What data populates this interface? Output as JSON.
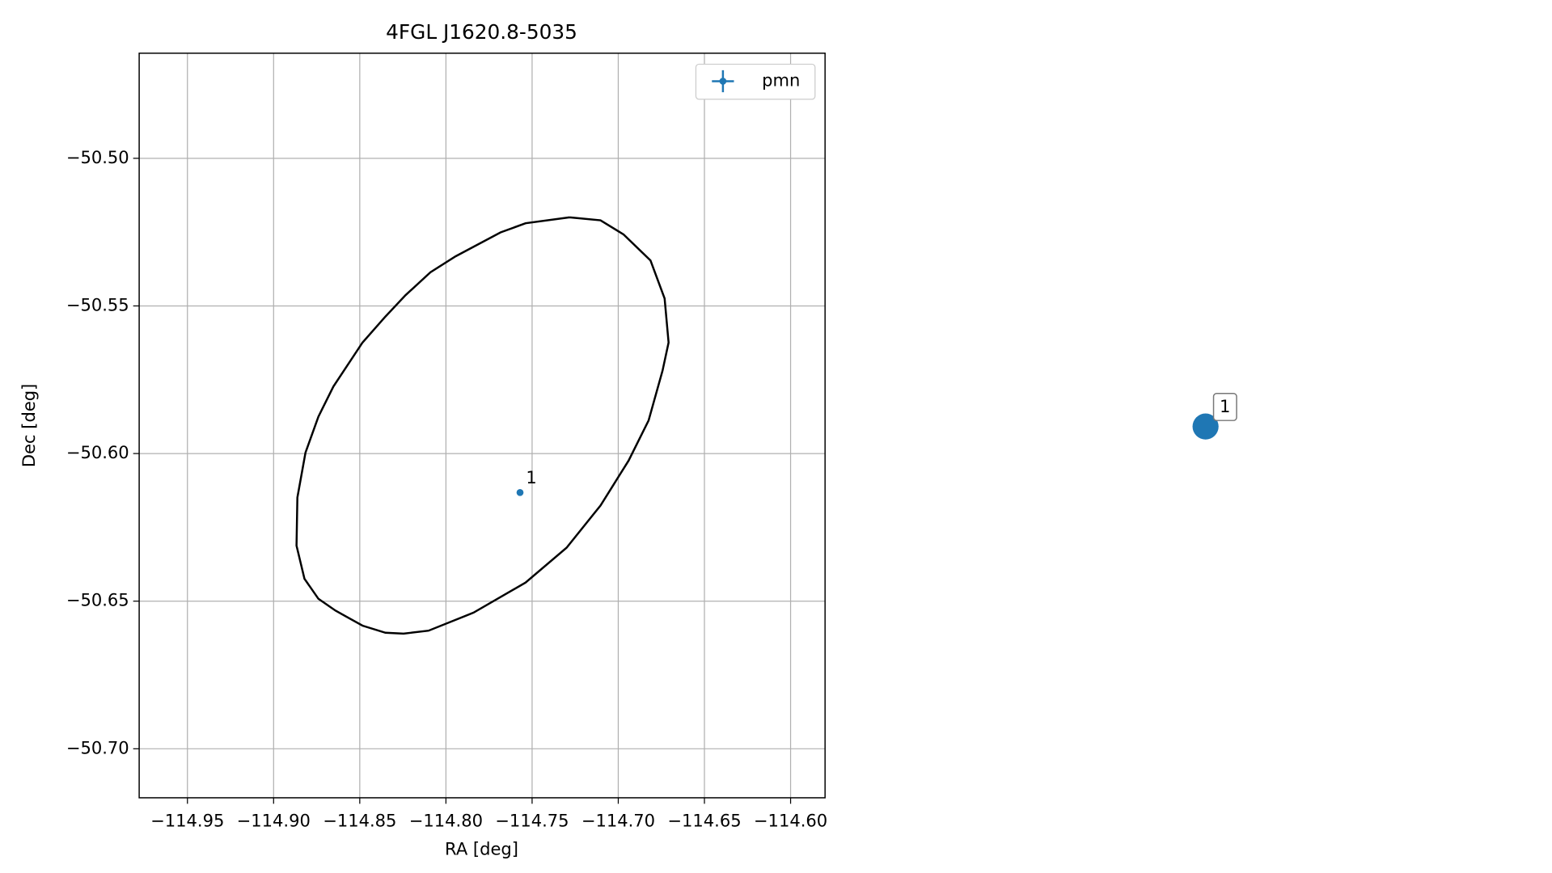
{
  "chart_data": [
    {
      "type": "scatter",
      "title": "4FGL J1620.8-5035",
      "xlabel": "RA [deg]",
      "ylabel": "Dec [deg]",
      "xlim": [
        -114.978,
        -114.58
      ],
      "ylim": [
        -50.7166,
        -50.4644
      ],
      "xticks": [
        {
          "value": -114.95,
          "label": "−114.95"
        },
        {
          "value": -114.9,
          "label": "−114.90"
        },
        {
          "value": -114.85,
          "label": "−114.85"
        },
        {
          "value": -114.8,
          "label": "−114.80"
        },
        {
          "value": -114.75,
          "label": "−114.75"
        },
        {
          "value": -114.7,
          "label": "−114.70"
        },
        {
          "value": -114.65,
          "label": "−114.65"
        },
        {
          "value": -114.6,
          "label": "−114.60"
        }
      ],
      "yticks": [
        {
          "value": -50.5,
          "label": "−50.50"
        },
        {
          "value": -50.55,
          "label": "−50.55"
        },
        {
          "value": -50.6,
          "label": "−50.60"
        },
        {
          "value": -50.65,
          "label": "−50.65"
        },
        {
          "value": -50.7,
          "label": "−50.70"
        }
      ],
      "grid": true,
      "legend": "upper right",
      "series": [
        {
          "name": "pmn",
          "color": "#1f77b4",
          "x": [
            -114.757
          ],
          "y": [
            -50.6132
          ],
          "point_labels": [
            "1"
          ]
        }
      ],
      "lines": [
        {
          "color": "#000000",
          "x": [
            -114.7283,
            -114.7103,
            -114.6969,
            -114.6813,
            -114.6731,
            -114.6708,
            -114.6743,
            -114.6824,
            -114.694,
            -114.7103,
            -114.73,
            -114.7538,
            -114.784,
            -114.8101,
            -114.8246,
            -114.8351,
            -114.8484,
            -114.8641,
            -114.874,
            -114.8821,
            -114.8867,
            -114.8862,
            -114.8815,
            -114.874,
            -114.8653,
            -114.8484,
            -114.8351,
            -114.8235,
            -114.809,
            -114.7944,
            -114.7683,
            -114.7538,
            -114.7283
          ],
          "y": [
            -50.52,
            -50.521,
            -50.5258,
            -50.5346,
            -50.5475,
            -50.5624,
            -50.5719,
            -50.5888,
            -50.6024,
            -50.6176,
            -50.6319,
            -50.6437,
            -50.6539,
            -50.66,
            -50.661,
            -50.6607,
            -50.6583,
            -50.6532,
            -50.6492,
            -50.6424,
            -50.6312,
            -50.6149,
            -50.5997,
            -50.5875,
            -50.5773,
            -50.5624,
            -50.5536,
            -50.5464,
            -50.5386,
            -50.5332,
            -50.5251,
            -50.522,
            -50.52
          ]
        }
      ]
    },
    {
      "type": "scatter",
      "color": "#1f77b4",
      "annotations": [
        "1"
      ]
    }
  ]
}
